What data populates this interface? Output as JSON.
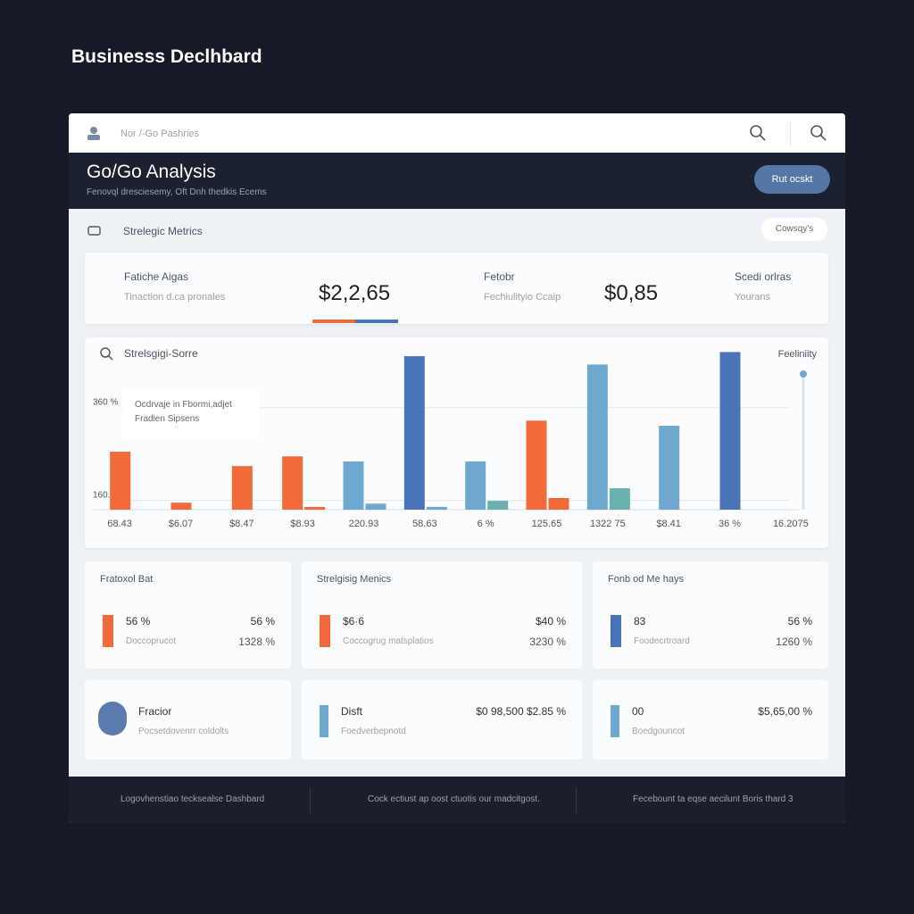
{
  "page_title": "Businesss Declhbard",
  "top_bar": {
    "breadcrumb": "Nor /-Go Pashries"
  },
  "header": {
    "title": "Go/Go Analysis",
    "subtitle": "Fenovql dresciesemy, Oft Dnh thedkis Ecems",
    "button": "Rut ocskt"
  },
  "section": {
    "title": "Strelegic Metrics",
    "button": "Cowsqy's"
  },
  "kpis": [
    {
      "label": "Fatiche Aigas",
      "sublabel": "Tinaction d.ca pronales",
      "value": "$2,2,65"
    },
    {
      "label": "Fetobr",
      "sublabel": "Fechiulityio Ccaip",
      "value": "$0,85"
    },
    {
      "label": "Scedi orlras",
      "sublabel": "Yourans"
    }
  ],
  "chart_data": {
    "type": "bar",
    "title": "Strelsgigi-Sorre",
    "legend": "Feeliniity",
    "tooltip": [
      "Ocdrvaje in Fbormi,adjet",
      "Fradien Sipsens"
    ],
    "categories": [
      "68.43",
      "$6.07",
      "$8.47",
      "$8.93",
      "220.93",
      "58.63",
      "6 %",
      "125.65",
      "1322 75",
      "$8.41",
      "36 %",
      "16.2075"
    ],
    "values": [
      265,
      155,
      234,
      255,
      244,
      471,
      244,
      332,
      453,
      321,
      480,
      null
    ],
    "colors": [
      "#f06a3a",
      "#f06a3a",
      "#f06a3a",
      "#f06a3a",
      "#6fa8cf",
      "#4a74b8",
      "#6fa8cf",
      "#f06a3a",
      "#6fa8cf",
      "#6fa8cf",
      "#4a74b8",
      null
    ],
    "values2": [
      null,
      null,
      null,
      146,
      153,
      146,
      159,
      165,
      186,
      null,
      null,
      null
    ],
    "colors2": [
      null,
      null,
      null,
      "#f06a3a",
      "#6fa8cf",
      "#6fa8cf",
      "#6ab0b0",
      "#f06a3a",
      "#6ab0b0",
      null,
      null,
      null
    ],
    "ylim": [
      140,
      500
    ],
    "yticks": [
      {
        "value": 160,
        "label": "160.%"
      },
      {
        "value": 360,
        "label": "360 %"
      }
    ],
    "grid": true
  },
  "cards": [
    {
      "title": "Fratoxol Bat",
      "value": "56 %",
      "sublabel": "Doccoprucot",
      "right_value": "56 %",
      "right_sublabel": "1328 %",
      "color": "#f06a3a"
    },
    {
      "title": "Strelgisig Menics",
      "value": "$6·6",
      "sublabel": "Coccogrug matsplatios",
      "right_value": "$40 %",
      "right_sublabel": "3230 %",
      "color": "#f06a3a"
    },
    {
      "title": "Fonb od Me hays",
      "value": "83",
      "sublabel": "Foodecrtroard",
      "right_value": "56 %",
      "right_sublabel": "1260 %",
      "color": "#4a74b8"
    }
  ],
  "cards2": [
    {
      "title": "Fracior",
      "sublabel": "Pocsetdovenrr coldolts"
    },
    {
      "title": "Disft",
      "sublabel": "Foedverbepnotd",
      "right_value": "$0 98,500 $2.85 %",
      "color": "#6fa8cf"
    },
    {
      "title": "00",
      "sublabel": "Boedgouncot",
      "right_value": "$5,65,00 %",
      "color": "#6fa8cf"
    }
  ],
  "footer": [
    "Logovhenstiao tecksealse Dashbard",
    "Cock ectiust ap oost ctuotis our madcitgost.",
    "Fecebount ta eqse aecilunt Boris thard 3"
  ]
}
